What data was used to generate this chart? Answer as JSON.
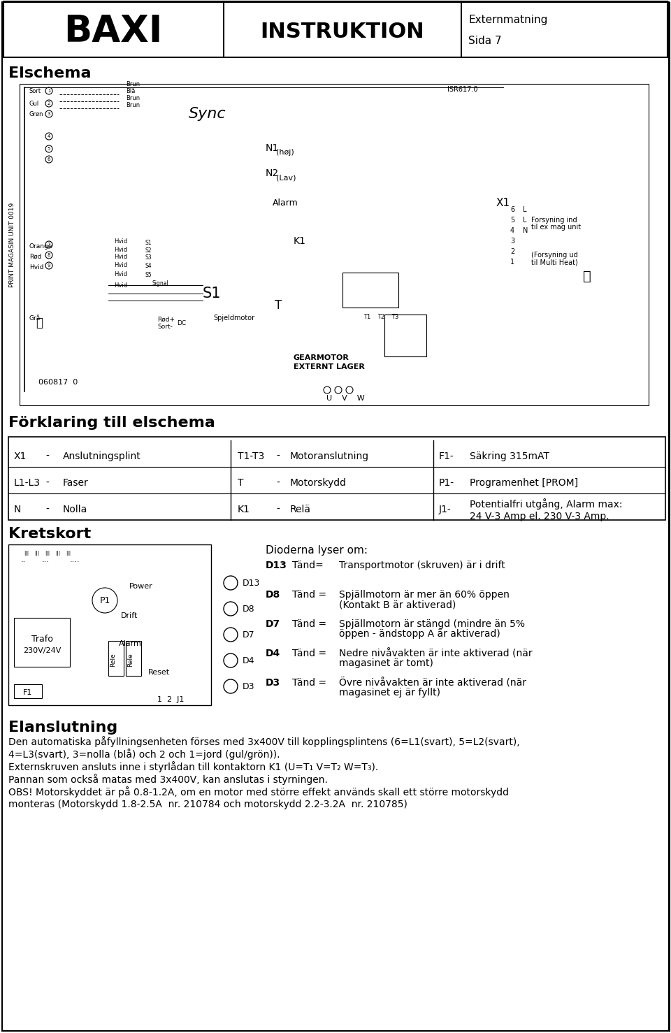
{
  "header": {
    "company": "BAXI",
    "title": "INSTRUKTION",
    "subtitle_line1": "Externmatning",
    "subtitle_line2": "Sida 7"
  },
  "section1_title": "Elschema",
  "section2_title": "Förklaring till elschema",
  "table_rows": [
    [
      "X1",
      "-",
      "Anslutningsplint",
      "T1-T3",
      "-",
      "Motoranslutning",
      "F1-",
      "Säkring 315mAT"
    ],
    [
      "L1-L3",
      "-",
      "Faser",
      "T",
      "-",
      "Motorskydd",
      "P1-",
      "Programenhet [PROM]"
    ],
    [
      "N",
      "-",
      "Nolla",
      "K1",
      "-",
      "Relä",
      "J1-",
      "Potentialfri utgång, Alarm max:\n24 V-3 Amp el. 230 V-3 Amp."
    ]
  ],
  "section3_title": "Kretskort",
  "diode_title": "Dioderna lyser om:",
  "diode_rows": [
    [
      "D13",
      "Tänd=",
      "Transportmotor (skruven) är i drift"
    ],
    [
      "D8",
      "Tänd =",
      "Spjällmotorn är mer än 60% öppen\n(Kontakt B är aktiverad)"
    ],
    [
      "D7",
      "Tänd =",
      "Spjällmotorn är stängd (mindre än 5%\nöppen - ändstopp A är aktiverad)"
    ],
    [
      "D4",
      "Tänd =",
      "Nedre nivåvakten är inte aktiverad (när\nmagasinet är tomt)"
    ],
    [
      "D3",
      "Tänd =",
      "Övre nivåvakten är inte aktiverad (när\nmagasinet ej är fyllt)"
    ]
  ],
  "section4_title": "Elanslutning",
  "elanslutning_lines": [
    "Den automatiska påfyllningsenheten förses med 3x400V till kopplingsplintens (6=L1(svart), 5=L2(svart),",
    "4=L3(svart), 3=nolla (blå) och 2 och 1=jord (gul/grön)).",
    "Externskruven ansluts inne i styrlådan till kontaktorn K1 (U=T₁ V=T₂ W=T₃).",
    "Pannan som också matas med 3x400V, kan anslutas i styrningen.",
    "OBS! Motorskyddet är på 0.8-1.2A, om en motor med större effekt används skall ett större motorskydd",
    "monteras (Motorskydd 1.8-2.5A  nr. 210784 och motorskydd 2.2-3.2A  nr. 210785)"
  ],
  "bg_color": "#ffffff",
  "text_color": "#000000",
  "border_color": "#000000"
}
